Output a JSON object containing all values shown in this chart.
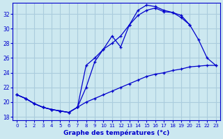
{
  "title": "Graphe des températures (°c)",
  "background_color": "#cce8f0",
  "grid_color": "#aaccdd",
  "line_color": "#0000cc",
  "xlim": [
    -0.5,
    23.5
  ],
  "ylim": [
    17.5,
    33.5
  ],
  "xticks": [
    0,
    1,
    2,
    3,
    4,
    5,
    6,
    7,
    8,
    9,
    10,
    11,
    12,
    13,
    14,
    15,
    16,
    17,
    18,
    19,
    20,
    21,
    22,
    23
  ],
  "yticks": [
    18,
    20,
    22,
    24,
    26,
    28,
    30,
    32
  ],
  "series1_x": [
    0,
    1,
    2,
    3,
    4,
    5,
    6,
    7,
    8,
    9,
    10,
    11,
    12,
    13,
    14,
    15,
    16,
    17,
    18,
    19,
    20,
    21,
    22,
    23
  ],
  "series1_y": [
    21.0,
    20.5,
    19.8,
    19.3,
    19.0,
    18.8,
    18.6,
    19.3,
    22.0,
    25.5,
    27.2,
    29.0,
    27.5,
    30.5,
    32.5,
    33.2,
    33.0,
    32.5,
    32.2,
    31.8,
    30.5,
    null,
    null,
    null
  ],
  "series2_x": [
    0,
    1,
    2,
    3,
    4,
    5,
    6,
    7,
    8,
    9,
    10,
    11,
    12,
    13,
    14,
    15,
    16,
    17,
    18,
    19,
    20,
    21,
    22,
    23
  ],
  "series2_y": [
    21.0,
    20.5,
    19.8,
    19.3,
    19.0,
    18.8,
    18.6,
    19.3,
    25.0,
    26.0,
    27.2,
    28.0,
    29.0,
    30.5,
    31.8,
    32.5,
    32.8,
    32.3,
    32.2,
    31.5,
    30.5,
    28.5,
    26.0,
    25.0
  ],
  "series3_x": [
    0,
    1,
    2,
    3,
    4,
    5,
    6,
    7,
    8,
    9,
    10,
    11,
    12,
    13,
    14,
    15,
    16,
    17,
    18,
    19,
    20,
    21,
    22,
    23
  ],
  "series3_y": [
    21.0,
    20.5,
    19.8,
    19.3,
    19.0,
    18.8,
    18.6,
    19.3,
    20.0,
    20.5,
    21.0,
    21.5,
    22.0,
    22.5,
    23.0,
    23.5,
    23.8,
    24.0,
    24.3,
    24.5,
    24.8,
    24.9,
    25.0,
    25.0
  ]
}
